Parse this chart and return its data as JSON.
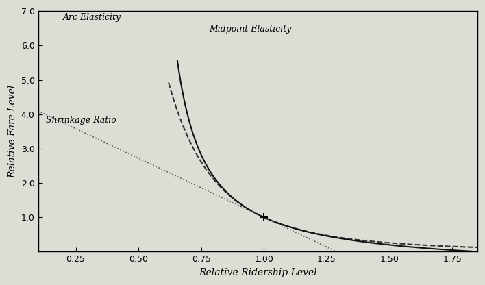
{
  "title": "",
  "xlabel": "Relative Ridership Level",
  "ylabel": "Relative Fare Level",
  "xlim": [
    0.1,
    1.85
  ],
  "ylim": [
    0.0,
    7.0
  ],
  "xticks": [
    0.25,
    0.5,
    0.75,
    1.0,
    1.25,
    1.5,
    1.75
  ],
  "yticks": [
    1.0,
    2.0,
    3.0,
    4.0,
    5.0,
    6.0,
    7.0
  ],
  "elasticity_label_arc": "Arc Elasticity",
  "elasticity_label_mid": "Midpoint Elasticity",
  "elasticity_label_shr": "Shrinkage Ratio",
  "arc_color": "#333333",
  "mid_color": "#111111",
  "shr_color": "#555555",
  "background_color": "#ddddd5",
  "e_val": -0.3,
  "shr_slope": -3.44,
  "figsize": [
    7.08,
    4.16
  ],
  "dpi": 100
}
